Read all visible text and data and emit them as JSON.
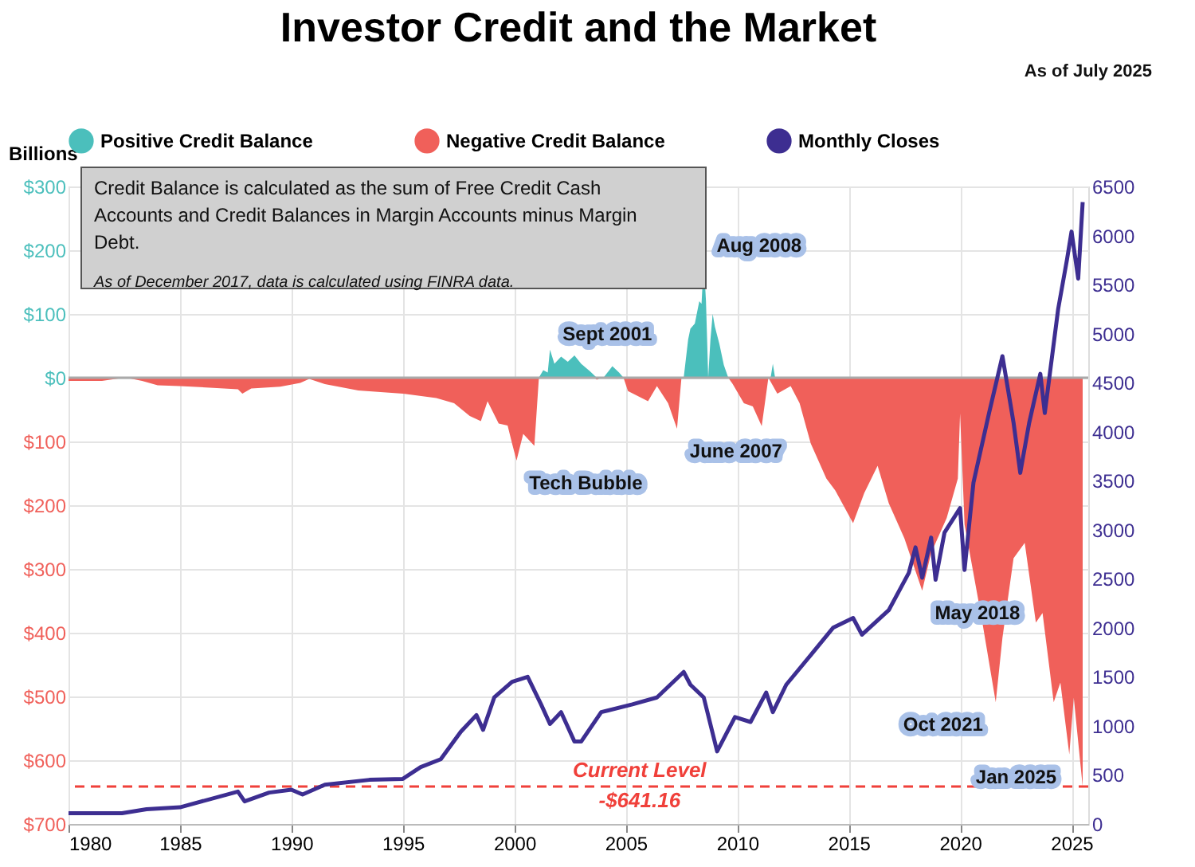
{
  "chart_data": {
    "type": "area",
    "title": "Investor Credit and the Market",
    "ylabel": "Billions",
    "xlim": [
      1980,
      2025.75
    ],
    "xticks": [
      1980,
      1985,
      1990,
      1995,
      2000,
      2005,
      2010,
      2015,
      2020,
      2025
    ],
    "ylim": [
      -700,
      300
    ],
    "yticks": [
      {
        "value": -700,
        "label": "$700"
      },
      {
        "value": -600,
        "label": "$600"
      },
      {
        "value": -500,
        "label": "$500"
      },
      {
        "value": -400,
        "label": "$400"
      },
      {
        "value": -300,
        "label": "$300"
      },
      {
        "value": -200,
        "label": "$200"
      },
      {
        "value": -100,
        "label": "$100"
      },
      {
        "value": 0,
        "label": "$0"
      },
      {
        "value": 100,
        "label": "$100"
      },
      {
        "value": 200,
        "label": "$200"
      },
      {
        "value": 300,
        "label": "$300"
      }
    ],
    "y2lim": [
      0,
      6500
    ],
    "y2ticks": [
      0,
      500,
      1000,
      1500,
      2000,
      2500,
      3000,
      3500,
      4000,
      4500,
      5000,
      5500,
      6000,
      6500
    ],
    "grid": true,
    "legend": "top",
    "series": [
      {
        "name": "Positive Credit Balance",
        "color": "#4bbfbc",
        "x": [
          1982.0,
          1982.6,
          1983.2,
          2001.1,
          2001.3,
          2001.5,
          2001.6,
          2001.8,
          2002.1,
          2002.4,
          2002.7,
          2003.0,
          2003.4,
          2003.7,
          2004.0,
          2004.4,
          2004.7,
          2004.9,
          2007.6,
          2007.8,
          2007.9,
          2008.1,
          2008.3,
          2008.4,
          2008.5,
          2008.6,
          2008.7,
          2008.8,
          2008.9,
          2009.0,
          2009.2,
          2009.4,
          2009.6,
          2011.5,
          2011.6,
          2011.7
        ],
        "values": [
          0,
          1,
          0,
          0,
          12,
          8,
          44,
          22,
          33,
          25,
          35,
          22,
          10,
          0,
          0,
          18,
          8,
          0,
          0,
          60,
          77,
          85,
          120,
          116,
          182,
          120,
          0,
          60,
          100,
          80,
          53,
          20,
          0,
          0,
          22,
          0
        ]
      },
      {
        "name": "Negative Credit Balance",
        "color": "#f0605a",
        "x": [
          1980.0,
          1981.5,
          1982.3,
          1982.6,
          1983.3,
          1984.0,
          1985.0,
          1986.5,
          1987.6,
          1987.8,
          1988.2,
          1989.5,
          1990.4,
          1990.8,
          1991.5,
          1993.0,
          1995.0,
          1996.5,
          1997.3,
          1998.0,
          1998.5,
          1998.8,
          1999.3,
          1999.7,
          1999.9,
          2000.1,
          2000.4,
          2000.9,
          2001.1,
          2001.2,
          2003.6,
          2003.7,
          2003.9,
          2004.9,
          2005.1,
          2006.0,
          2006.4,
          2006.9,
          2007.3,
          2007.5,
          2009.6,
          2009.8,
          2010.3,
          2010.7,
          2011.1,
          2011.4,
          2011.8,
          2012.4,
          2012.8,
          2013.3,
          2014.0,
          2014.4,
          2015.2,
          2015.7,
          2016.3,
          2016.8,
          2017.5,
          2018.3,
          2018.7,
          2019.4,
          2019.9,
          2020.0,
          2020.2,
          2021.0,
          2021.6,
          2021.9,
          2022.4,
          2022.9,
          2023.4,
          2023.7,
          2024.2,
          2024.5,
          2024.9,
          2025.1,
          2025.5
        ],
        "values": [
          -5,
          -5,
          -1,
          0,
          -5,
          -12,
          -13,
          -16,
          -18,
          -25,
          -17,
          -14,
          -8,
          -2,
          -10,
          -20,
          -25,
          -32,
          -40,
          -60,
          -68,
          -37,
          -72,
          -75,
          -103,
          -130,
          -88,
          -107,
          -2,
          0,
          0,
          -3,
          0,
          0,
          -21,
          -37,
          -13,
          -40,
          -80,
          0,
          0,
          -10,
          -40,
          -45,
          -76,
          0,
          -25,
          -13,
          -40,
          -103,
          -158,
          -177,
          -228,
          -181,
          -138,
          -197,
          -252,
          -334,
          -275,
          -220,
          -158,
          -56,
          -230,
          -384,
          -509,
          -408,
          -283,
          -259,
          -384,
          -369,
          -509,
          -478,
          -591,
          -502,
          -641.16
        ]
      },
      {
        "name": "Monthly Closes",
        "color": "#3d2e91",
        "type": "line",
        "axis": "y2",
        "x": [
          1980.0,
          1982.4,
          1983.5,
          1985.0,
          1987.6,
          1987.9,
          1989.0,
          1990.0,
          1990.5,
          1991.5,
          1993.5,
          1995.0,
          1995.8,
          1996.7,
          1997.6,
          1998.3,
          1998.6,
          1999.1,
          1999.9,
          2000.6,
          2001.2,
          2001.6,
          2002.1,
          2002.7,
          2003.0,
          2003.9,
          2005.3,
          2006.4,
          2007.6,
          2007.9,
          2008.5,
          2009.1,
          2009.9,
          2010.6,
          2011.3,
          2011.6,
          2012.2,
          2013.4,
          2014.3,
          2015.2,
          2015.6,
          2016.8,
          2017.7,
          2018.0,
          2018.3,
          2018.7,
          2018.9,
          2019.3,
          2020.0,
          2020.2,
          2020.6,
          2021.3,
          2021.9,
          2022.4,
          2022.7,
          2023.1,
          2023.6,
          2023.8,
          2024.4,
          2024.8,
          2025.0,
          2025.3,
          2025.5
        ],
        "values": [
          110,
          110,
          150,
          170,
          330,
          230,
          320,
          350,
          300,
          400,
          450,
          460,
          580,
          660,
          940,
          1110,
          960,
          1290,
          1450,
          1500,
          1220,
          1020,
          1140,
          840,
          840,
          1140,
          1220,
          1290,
          1550,
          1420,
          1290,
          740,
          1090,
          1040,
          1340,
          1140,
          1420,
          1750,
          2000,
          2100,
          1930,
          2180,
          2560,
          2820,
          2510,
          2920,
          2490,
          2970,
          3220,
          2590,
          3480,
          4190,
          4770,
          4090,
          3580,
          4090,
          4590,
          4190,
          5250,
          5760,
          6040,
          5560,
          6340
        ]
      }
    ],
    "ref_lines": [
      {
        "axis": "y",
        "value": -641.16,
        "label": "Current Level\n-$641.16",
        "color": "#f0403a",
        "line_style": "dashed"
      }
    ],
    "annotations": [
      "Credit Balance is calculated as the sum of Free Credit Cash Accounts and Credit Balances in Margin Accounts minus Margin Debt.",
      "As of December 2017, data is calculated using FINRA data.",
      "As of July 2025",
      {
        "text": "Sept 2001",
        "x": 2001.6,
        "y": 44
      },
      {
        "text": "Aug 2008",
        "x": 2008.5,
        "y": 182
      },
      {
        "text": "June 2007",
        "x": 2007.3,
        "y": -80
      },
      {
        "text": "Tech Bubble",
        "x": 2000.1,
        "y": -130
      },
      {
        "text": "May 2018",
        "x": 2018.3,
        "y": -334
      },
      {
        "text": "Oct 2021",
        "x": 2021.6,
        "y": -509
      },
      {
        "text": "Jan 2025",
        "x": 2024.9,
        "y": -591
      }
    ]
  }
}
